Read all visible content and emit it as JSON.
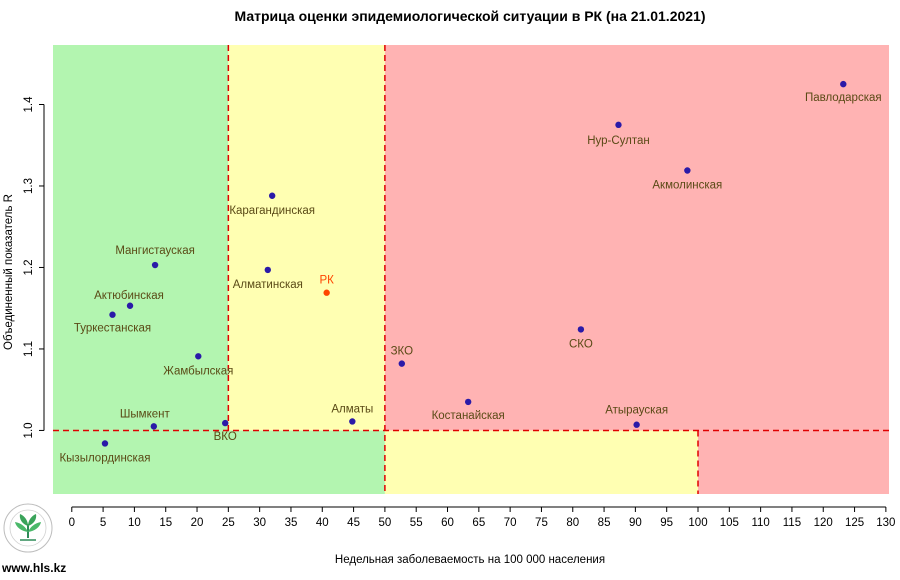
{
  "site_text": "www.hls.kz",
  "colors": {
    "green_zone": "#b3f5b0",
    "yellow_zone": "#ffffb2",
    "red_zone": "#ffb3b3",
    "threshold_line": "#e00000",
    "point": "#2a1aa8",
    "point_label": "#5a4a16",
    "rk_point": "#ff4500",
    "rk_label": "#ff4500"
  },
  "chart_data": {
    "type": "scatter",
    "title": "Матрица оценки эпидемиологической ситуации в РК (на 21.01.2021)",
    "xlabel": "Недельная заболеваемость на 100 000 населения",
    "ylabel": "Объединенный показатель R",
    "xlim": [
      -3,
      130.5
    ],
    "ylim": [
      0.922,
      1.473
    ],
    "xticks": [
      0,
      5,
      10,
      15,
      20,
      25,
      30,
      35,
      40,
      45,
      50,
      55,
      60,
      65,
      70,
      75,
      80,
      85,
      90,
      95,
      100,
      105,
      110,
      115,
      120,
      125,
      130
    ],
    "yticks": [
      1.0,
      1.1,
      1.2,
      1.3,
      1.4
    ],
    "ytick_labels": [
      "1.0",
      "1.1",
      "1.2",
      "1.3",
      "1.4"
    ],
    "grid": false,
    "zones": [
      {
        "color": "green",
        "x_range": [
          -3,
          25
        ],
        "y_range": [
          1.0,
          1.473
        ]
      },
      {
        "color": "green",
        "x_range": [
          -3,
          50
        ],
        "y_range": [
          0.922,
          1.0
        ]
      },
      {
        "color": "yellow",
        "x_range": [
          25,
          50
        ],
        "y_range": [
          1.0,
          1.473
        ]
      },
      {
        "color": "yellow",
        "x_range": [
          50,
          100
        ],
        "y_range": [
          0.922,
          1.0
        ]
      },
      {
        "color": "red",
        "x_range": [
          50,
          130.5
        ],
        "y_range": [
          1.0,
          1.473
        ]
      },
      {
        "color": "red",
        "x_range": [
          100,
          130.5
        ],
        "y_range": [
          0.922,
          1.0
        ]
      }
    ],
    "thresholds": {
      "x": [
        25,
        50,
        100
      ],
      "y": 1.0
    },
    "points": [
      {
        "label": "Павлодарская",
        "x": 123.2,
        "y": 1.425
      },
      {
        "label": "Нур-Султан",
        "x": 87.3,
        "y": 1.375
      },
      {
        "label": "Акмолинская",
        "x": 98.3,
        "y": 1.319
      },
      {
        "label": "Карагандинская",
        "x": 32.0,
        "y": 1.288
      },
      {
        "label": "Мангистауская",
        "x": 13.3,
        "y": 1.203
      },
      {
        "label": "Алматинская",
        "x": 31.3,
        "y": 1.197
      },
      {
        "label": "РК",
        "x": 40.7,
        "y": 1.169
      },
      {
        "label": "Актюбинская",
        "x": 9.3,
        "y": 1.153
      },
      {
        "label": "Туркестанская",
        "x": 6.5,
        "y": 1.142
      },
      {
        "label": "СКО",
        "x": 81.3,
        "y": 1.124
      },
      {
        "label": "Жамбылская",
        "x": 20.2,
        "y": 1.091
      },
      {
        "label": "ЗКО",
        "x": 52.7,
        "y": 1.082
      },
      {
        "label": "Костанайская",
        "x": 63.3,
        "y": 1.035
      },
      {
        "label": "Алматы",
        "x": 44.8,
        "y": 1.011
      },
      {
        "label": "ВКО",
        "x": 24.5,
        "y": 1.009
      },
      {
        "label": "Атырауская",
        "x": 90.2,
        "y": 1.007
      },
      {
        "label": "Шымкент",
        "x": 13.1,
        "y": 1.005
      },
      {
        "label": "Кызылординская",
        "x": 5.3,
        "y": 0.984
      }
    ]
  }
}
